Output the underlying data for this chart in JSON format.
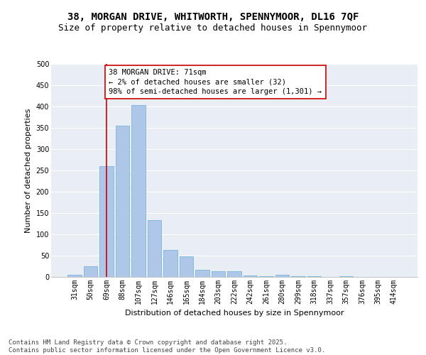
{
  "title_line1": "38, MORGAN DRIVE, WHITWORTH, SPENNYMOOR, DL16 7QF",
  "title_line2": "Size of property relative to detached houses in Spennymoor",
  "xlabel": "Distribution of detached houses by size in Spennymoor",
  "ylabel": "Number of detached properties",
  "categories": [
    "31sqm",
    "50sqm",
    "69sqm",
    "88sqm",
    "107sqm",
    "127sqm",
    "146sqm",
    "165sqm",
    "184sqm",
    "203sqm",
    "222sqm",
    "242sqm",
    "261sqm",
    "280sqm",
    "299sqm",
    "318sqm",
    "337sqm",
    "357sqm",
    "376sqm",
    "395sqm",
    "414sqm"
  ],
  "values": [
    5,
    25,
    260,
    355,
    403,
    133,
    63,
    48,
    17,
    13,
    13,
    4,
    1,
    5,
    1,
    1,
    0,
    1,
    0,
    0,
    0
  ],
  "bar_color": "#aec6e8",
  "bar_edge_color": "#6aaed6",
  "vline_x": 2,
  "vline_color": "#cc0000",
  "annotation_text": "38 MORGAN DRIVE: 71sqm\n← 2% of detached houses are smaller (32)\n98% of semi-detached houses are larger (1,301) →",
  "annotation_box_color": "#ffffff",
  "annotation_box_edge_color": "#cc0000",
  "ylim": [
    0,
    500
  ],
  "yticks": [
    0,
    50,
    100,
    150,
    200,
    250,
    300,
    350,
    400,
    450,
    500
  ],
  "background_color": "#e8eef4",
  "footer_line1": "Contains HM Land Registry data © Crown copyright and database right 2025.",
  "footer_line2": "Contains public sector information licensed under the Open Government Licence v3.0.",
  "title_fontsize": 10,
  "subtitle_fontsize": 9,
  "axis_label_fontsize": 8,
  "tick_fontsize": 7,
  "annotation_fontsize": 7.5,
  "footer_fontsize": 6.5
}
